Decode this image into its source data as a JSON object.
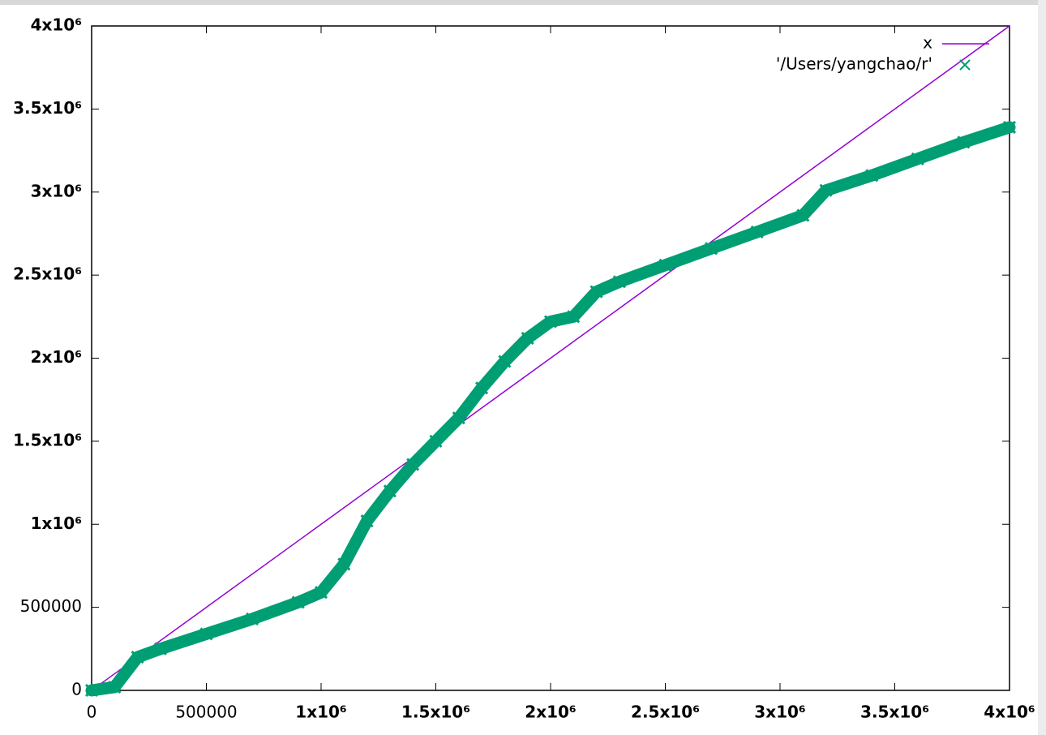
{
  "chart_data": {
    "type": "line",
    "xlim": [
      0,
      4000000
    ],
    "ylim": [
      0,
      4000000
    ],
    "xticks": [
      0,
      500000,
      {
        "value": 1000000,
        "label": "1x10⁶"
      },
      {
        "value": 1500000,
        "label": "1.5x10⁶"
      },
      {
        "value": 2000000,
        "label": "2x10⁶"
      },
      {
        "value": 2500000,
        "label": "2.5x10⁶"
      },
      {
        "value": 3000000,
        "label": "3x10⁶"
      },
      {
        "value": 3500000,
        "label": "3.5x10⁶"
      },
      {
        "value": 4000000,
        "label": "4x10⁶"
      }
    ],
    "yticks": [
      0,
      500000,
      {
        "value": 1000000,
        "label": "1x10⁶"
      },
      {
        "value": 1500000,
        "label": "1.5x10⁶"
      },
      {
        "value": 2000000,
        "label": "2x10⁶"
      },
      {
        "value": 2500000,
        "label": "2.5x10⁶"
      },
      {
        "value": 3000000,
        "label": "3x10⁶"
      },
      {
        "value": 3500000,
        "label": "3.5x10⁶"
      },
      {
        "value": 4000000,
        "label": "4x10⁶"
      }
    ],
    "legend": "top-right",
    "series": [
      {
        "name": "x",
        "color": "#9400d3",
        "style": "lines",
        "x": [
          0,
          4000000
        ],
        "values": [
          0,
          4000000
        ]
      },
      {
        "name": "'/Users/yangchao/r'",
        "color": "#009e73",
        "style": "points",
        "x": [
          0,
          100000,
          200000,
          300000,
          500000,
          700000,
          900000,
          1000000,
          1100000,
          1200000,
          1300000,
          1400000,
          1500000,
          1600000,
          1700000,
          1800000,
          1900000,
          2000000,
          2100000,
          2200000,
          2300000,
          2500000,
          2700000,
          2900000,
          3100000,
          3200000,
          3400000,
          3600000,
          3800000,
          4000000
        ],
        "values": [
          0,
          20000,
          200000,
          250000,
          340000,
          430000,
          530000,
          590000,
          760000,
          1020000,
          1200000,
          1360000,
          1500000,
          1640000,
          1820000,
          1980000,
          2120000,
          2220000,
          2250000,
          2400000,
          2460000,
          2560000,
          2660000,
          2760000,
          2860000,
          3010000,
          3100000,
          3200000,
          3300000,
          3390000
        ]
      }
    ]
  }
}
